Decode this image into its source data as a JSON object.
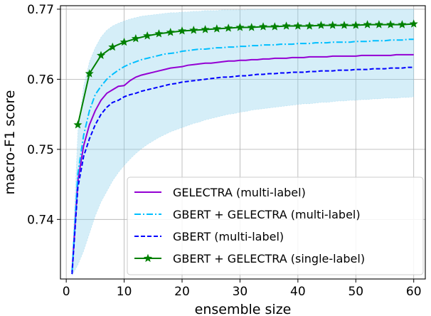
{
  "chart_data": {
    "type": "line",
    "xlabel": "ensemble size",
    "ylabel": "macro-F1 score",
    "xlim": [
      -1,
      62
    ],
    "ylim": [
      0.7315,
      0.7705
    ],
    "xticks": [
      0,
      10,
      20,
      30,
      40,
      50,
      60
    ],
    "xtick_labels": [
      "0",
      "10",
      "20",
      "30",
      "40",
      "50",
      "60"
    ],
    "yticks": [
      0.74,
      0.75,
      0.76,
      0.77
    ],
    "ytick_labels": [
      "0.74",
      "0.75",
      "0.76",
      "0.77"
    ],
    "grid": true,
    "legend_position": "lower right",
    "x": [
      1,
      2,
      3,
      4,
      5,
      6,
      7,
      8,
      9,
      10,
      11,
      12,
      13,
      14,
      15,
      16,
      17,
      18,
      19,
      20,
      21,
      22,
      23,
      24,
      25,
      26,
      27,
      28,
      29,
      30,
      31,
      32,
      33,
      34,
      35,
      36,
      37,
      38,
      39,
      40,
      41,
      42,
      43,
      44,
      45,
      46,
      47,
      48,
      49,
      50,
      51,
      52,
      53,
      54,
      55,
      56,
      57,
      58,
      59,
      60
    ],
    "band": {
      "color": "#87ceeb",
      "upper": [
        0.7335,
        0.7525,
        0.759,
        0.7625,
        0.7645,
        0.766,
        0.767,
        0.7676,
        0.768,
        0.7683,
        0.7686,
        0.7688,
        0.769,
        0.7691,
        0.7692,
        0.7693,
        0.7694,
        0.7695,
        0.7695,
        0.7696,
        0.7696,
        0.7697,
        0.7697,
        0.7698,
        0.7698,
        0.7698,
        0.7699,
        0.7699,
        0.7699,
        0.7699,
        0.7699,
        0.77,
        0.77,
        0.77,
        0.77,
        0.77,
        0.77,
        0.77,
        0.77,
        0.77,
        0.77,
        0.77,
        0.77,
        0.77,
        0.77,
        0.77,
        0.77,
        0.77,
        0.77,
        0.77,
        0.77,
        0.77,
        0.77,
        0.77,
        0.77,
        0.77,
        0.77,
        0.77,
        0.77,
        0.77
      ],
      "lower": [
        0.732,
        0.7335,
        0.7355,
        0.738,
        0.7405,
        0.7425,
        0.744,
        0.7455,
        0.7467,
        0.7477,
        0.7486,
        0.7494,
        0.7501,
        0.7507,
        0.7512,
        0.7517,
        0.7521,
        0.7525,
        0.7528,
        0.7531,
        0.7534,
        0.7537,
        0.7539,
        0.7542,
        0.7544,
        0.7546,
        0.7548,
        0.755,
        0.7551,
        0.7553,
        0.7554,
        0.7556,
        0.7557,
        0.7558,
        0.7559,
        0.756,
        0.7561,
        0.7562,
        0.7563,
        0.7564,
        0.7565,
        0.7565,
        0.7566,
        0.7567,
        0.7567,
        0.7568,
        0.7569,
        0.7569,
        0.757,
        0.757,
        0.7571,
        0.7571,
        0.7572,
        0.7572,
        0.7573,
        0.7573,
        0.7573,
        0.7574,
        0.7574,
        0.7575
      ]
    },
    "series": [
      {
        "name": "GELECTRA (multi-label)",
        "color": "#9400d3",
        "dash": "solid",
        "marker": "none",
        "values": [
          0.7325,
          0.7455,
          0.7505,
          0.7535,
          0.7555,
          0.757,
          0.758,
          0.7585,
          0.759,
          0.7591,
          0.7598,
          0.7603,
          0.7606,
          0.7608,
          0.761,
          0.7612,
          0.7614,
          0.7616,
          0.7617,
          0.7618,
          0.762,
          0.7621,
          0.7622,
          0.7623,
          0.7623,
          0.7624,
          0.7625,
          0.7626,
          0.7626,
          0.7627,
          0.7627,
          0.7628,
          0.7628,
          0.7629,
          0.7629,
          0.763,
          0.763,
          0.763,
          0.7631,
          0.7631,
          0.7631,
          0.7632,
          0.7632,
          0.7632,
          0.7632,
          0.7633,
          0.7633,
          0.7633,
          0.7633,
          0.7633,
          0.7634,
          0.7634,
          0.7634,
          0.7634,
          0.7634,
          0.7634,
          0.7635,
          0.7635,
          0.7635,
          0.7635
        ]
      },
      {
        "name": "GBERT + GELECTRA (multi-label)",
        "color": "#00bfff",
        "dash": "dashdot",
        "marker": "none",
        "values": [
          0.7325,
          0.7465,
          0.752,
          0.7555,
          0.7578,
          0.759,
          0.76,
          0.7607,
          0.7613,
          0.7618,
          0.7622,
          0.7625,
          0.7628,
          0.763,
          0.7632,
          0.7634,
          0.7636,
          0.7637,
          0.7638,
          0.764,
          0.7641,
          0.7642,
          0.7643,
          0.7643,
          0.7644,
          0.7645,
          0.7645,
          0.7646,
          0.7646,
          0.7647,
          0.7647,
          0.7648,
          0.7648,
          0.7649,
          0.7649,
          0.7649,
          0.765,
          0.765,
          0.765,
          0.7651,
          0.7651,
          0.7651,
          0.7652,
          0.7652,
          0.7652,
          0.7653,
          0.7653,
          0.7653,
          0.7653,
          0.7654,
          0.7654,
          0.7654,
          0.7655,
          0.7655,
          0.7655,
          0.7656,
          0.7656,
          0.7656,
          0.7657,
          0.7657
        ]
      },
      {
        "name": "GBERT (multi-label)",
        "color": "#0000ff",
        "dash": "dashed",
        "marker": "none",
        "values": [
          0.7322,
          0.7445,
          0.749,
          0.7515,
          0.7535,
          0.755,
          0.756,
          0.7567,
          0.757,
          0.7575,
          0.7578,
          0.758,
          0.7583,
          0.7585,
          0.7587,
          0.7589,
          0.7591,
          0.7593,
          0.7594,
          0.7596,
          0.7597,
          0.7598,
          0.7599,
          0.76,
          0.7601,
          0.7602,
          0.7603,
          0.7603,
          0.7604,
          0.7605,
          0.7605,
          0.7606,
          0.7607,
          0.7607,
          0.7608,
          0.7608,
          0.7609,
          0.7609,
          0.761,
          0.761,
          0.761,
          0.7611,
          0.7611,
          0.7612,
          0.7612,
          0.7612,
          0.7613,
          0.7613,
          0.7613,
          0.7614,
          0.7614,
          0.7614,
          0.7615,
          0.7615,
          0.7615,
          0.7616,
          0.7616,
          0.7616,
          0.7617,
          0.7617
        ]
      },
      {
        "name": "GBERT + GELECTRA (single-label)",
        "color": "#008000",
        "dash": "solid",
        "marker": "star",
        "x": [
          2,
          4,
          6,
          8,
          10,
          12,
          14,
          16,
          18,
          20,
          22,
          24,
          26,
          28,
          30,
          32,
          34,
          36,
          38,
          40,
          42,
          44,
          46,
          48,
          50,
          52,
          54,
          56,
          58,
          60
        ],
        "values": [
          0.7535,
          0.7608,
          0.7634,
          0.7646,
          0.7653,
          0.7658,
          0.7662,
          0.7665,
          0.7667,
          0.7669,
          0.767,
          0.7671,
          0.7672,
          0.7673,
          0.7674,
          0.7674,
          0.7675,
          0.7675,
          0.7676,
          0.7676,
          0.7676,
          0.7677,
          0.7677,
          0.7677,
          0.7677,
          0.7678,
          0.7678,
          0.7678,
          0.7678,
          0.7679
        ]
      }
    ]
  }
}
